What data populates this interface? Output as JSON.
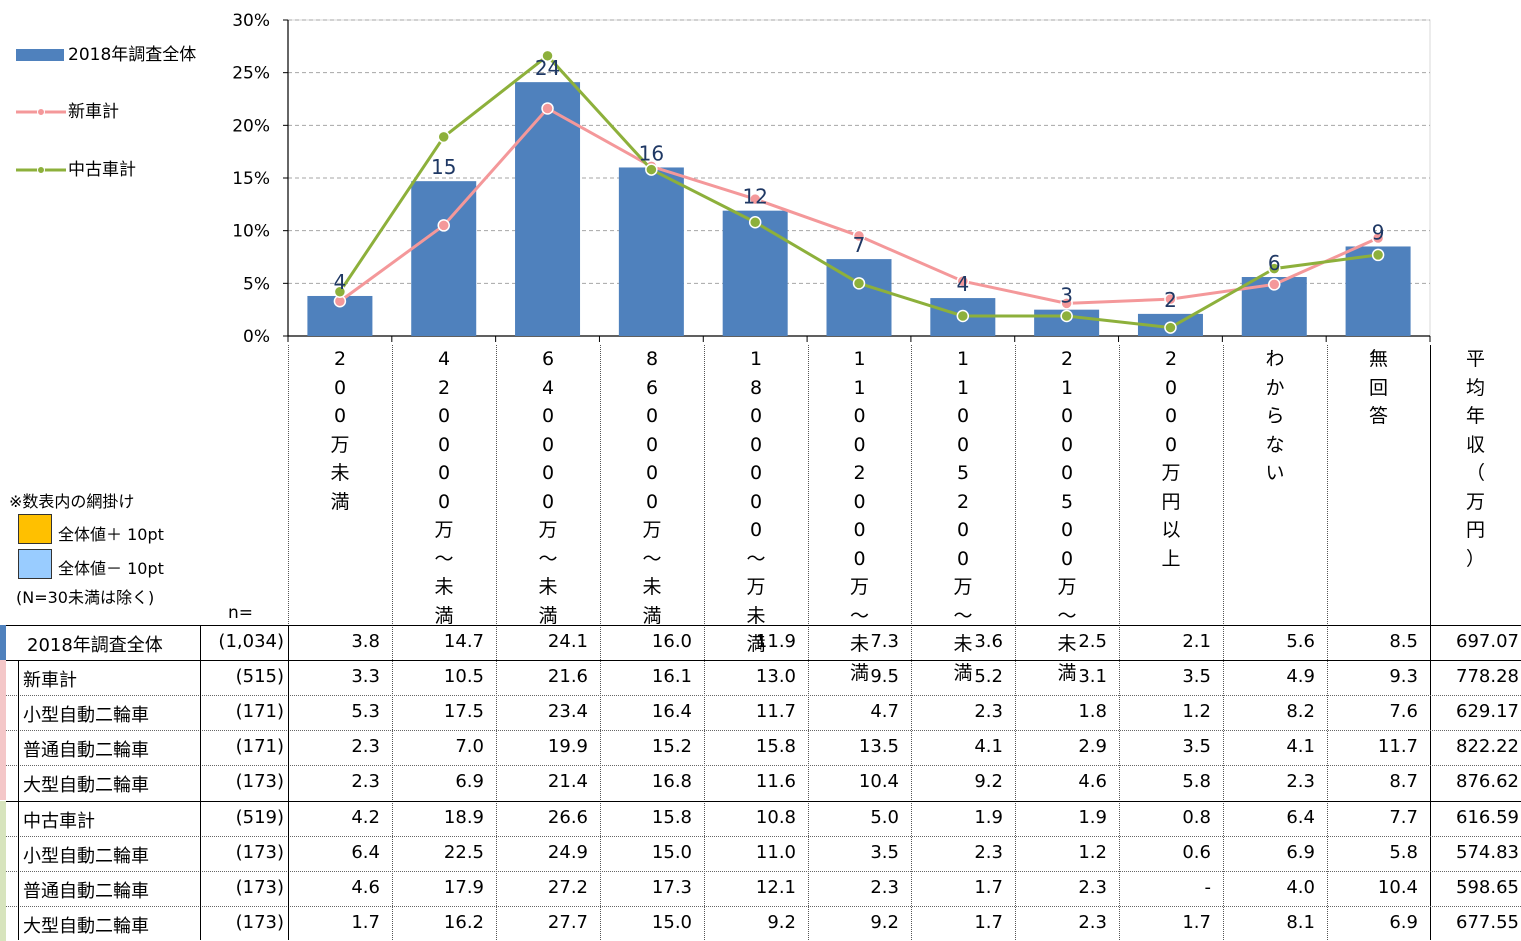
{
  "chart_data": {
    "type": "bar",
    "categories": [
      "200万未満",
      "200〜400万未満",
      "400〜600万未満",
      "600〜800万未満",
      "800〜1000万未満",
      "1000〜1200万未満",
      "1200〜1500万未満",
      "1500〜2000万未満",
      "2000万円以上",
      "わからない",
      "無回答"
    ],
    "y_ticks": [
      "0%",
      "5%",
      "10%",
      "15%",
      "20%",
      "25%",
      "30%"
    ],
    "ylim": [
      0,
      30
    ],
    "bar_labels": [
      "4",
      "15",
      "24",
      "16",
      "12",
      "7",
      "4",
      "3",
      "2",
      "6",
      "9"
    ],
    "series": [
      {
        "name": "2018年調査全体",
        "type": "bar",
        "color": "#4f81bd",
        "values": [
          3.8,
          14.7,
          24.1,
          16.0,
          11.9,
          7.3,
          3.6,
          2.5,
          2.1,
          5.6,
          8.5
        ]
      },
      {
        "name": "新車計",
        "type": "line",
        "color": "#f4989a",
        "values": [
          3.3,
          10.5,
          21.6,
          16.1,
          13.0,
          9.5,
          5.2,
          3.1,
          3.5,
          4.9,
          9.3
        ]
      },
      {
        "name": "中古車計",
        "type": "line",
        "color": "#8db03b",
        "values": [
          4.2,
          18.9,
          26.6,
          15.8,
          10.8,
          5.0,
          1.9,
          1.9,
          0.8,
          6.4,
          7.7
        ]
      }
    ],
    "grid": true
  },
  "legend": {
    "items": [
      {
        "label": "2018年調査全体"
      },
      {
        "label": "新車計"
      },
      {
        "label": "中古車計"
      }
    ]
  },
  "notes": {
    "title": "※数表内の網掛け",
    "plus": "全体値＋ 10pt",
    "minus": "全体値－ 10pt",
    "exclusion": "(N=30未満は除く)",
    "plus_color": "#ffc000",
    "minus_color": "#99ccff",
    "n_label": "n="
  },
  "table": {
    "col_headers": [
      [
        "200",
        "万未満"
      ],
      [
        "4200",
        "00万〜",
        "未満"
      ],
      [
        "6400",
        "00万〜",
        "未満"
      ],
      [
        "8600",
        "00万〜",
        "未満"
      ],
      [
        "1800",
        "00",
        "0〜",
        "万未満"
      ],
      [
        "1100",
        "2000",
        "万〜",
        "未満"
      ],
      [
        "1100",
        "5200",
        "万〜",
        "未満"
      ],
      [
        "2100",
        "0500",
        "万〜",
        "未満"
      ],
      [
        "2000",
        "万円以上"
      ],
      [
        "わからない"
      ],
      [
        "無回答"
      ],
      [
        "平均年収",
        "（万円）"
      ]
    ],
    "rows": [
      {
        "name": "2018年調査全体",
        "n": "(1,034)",
        "values": [
          "3.8",
          "14.7",
          "24.1",
          "16.0",
          "11.9",
          "7.3",
          "3.6",
          "2.5",
          "2.1",
          "5.6",
          "8.5",
          "697.07"
        ]
      },
      {
        "name": "新車計",
        "n": "(515)",
        "values": [
          "3.3",
          "10.5",
          "21.6",
          "16.1",
          "13.0",
          "9.5",
          "5.2",
          "3.1",
          "3.5",
          "4.9",
          "9.3",
          "778.28"
        ]
      },
      {
        "name": "小型自動二輪車",
        "n": "(171)",
        "values": [
          "5.3",
          "17.5",
          "23.4",
          "16.4",
          "11.7",
          "4.7",
          "2.3",
          "1.8",
          "1.2",
          "8.2",
          "7.6",
          "629.17"
        ]
      },
      {
        "name": "普通自動二輪車",
        "n": "(171)",
        "values": [
          "2.3",
          "7.0",
          "19.9",
          "15.2",
          "15.8",
          "13.5",
          "4.1",
          "2.9",
          "3.5",
          "4.1",
          "11.7",
          "822.22"
        ]
      },
      {
        "name": "大型自動二輪車",
        "n": "(173)",
        "values": [
          "2.3",
          "6.9",
          "21.4",
          "16.8",
          "11.6",
          "10.4",
          "9.2",
          "4.6",
          "5.8",
          "2.3",
          "8.7",
          "876.62"
        ]
      },
      {
        "name": "中古車計",
        "n": "(519)",
        "values": [
          "4.2",
          "18.9",
          "26.6",
          "15.8",
          "10.8",
          "5.0",
          "1.9",
          "1.9",
          "0.8",
          "6.4",
          "7.7",
          "616.59"
        ]
      },
      {
        "name": "小型自動二輪車",
        "n": "(173)",
        "values": [
          "6.4",
          "22.5",
          "24.9",
          "15.0",
          "11.0",
          "3.5",
          "2.3",
          "1.2",
          "0.6",
          "6.9",
          "5.8",
          "574.83"
        ]
      },
      {
        "name": "普通自動二輪車",
        "n": "(173)",
        "values": [
          "4.6",
          "17.9",
          "27.2",
          "17.3",
          "12.1",
          "2.3",
          "1.7",
          "2.3",
          "-",
          "4.0",
          "10.4",
          "598.65"
        ]
      },
      {
        "name": "大型自動二輪車",
        "n": "(173)",
        "values": [
          "1.7",
          "16.2",
          "27.7",
          "15.0",
          "9.2",
          "9.2",
          "1.7",
          "2.3",
          "1.7",
          "8.1",
          "6.9",
          "677.55"
        ]
      }
    ]
  }
}
